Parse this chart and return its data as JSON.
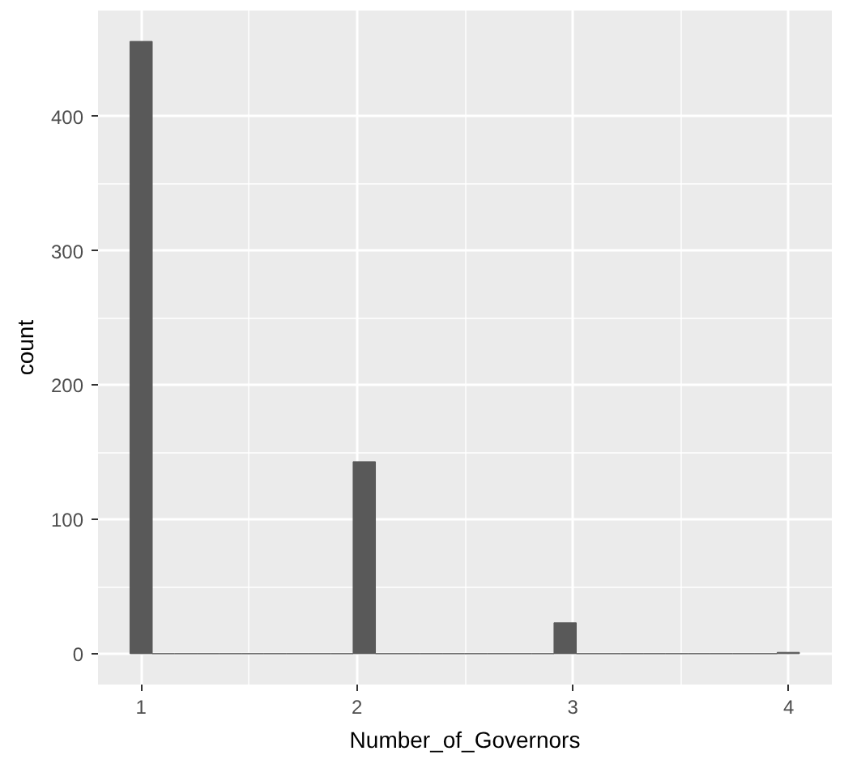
{
  "chart_data": {
    "type": "histogram",
    "xlabel": "Number_of_Governors",
    "ylabel": "count",
    "color": "#595959",
    "bins": [
      0.948,
      1.0514,
      1.1548,
      1.2582,
      1.3616,
      1.465,
      1.5684,
      1.6718,
      1.7752,
      1.8786,
      1.982,
      2.0854,
      2.1888,
      2.2922,
      2.3956,
      2.499,
      2.6024,
      2.7058,
      2.8092,
      2.9126,
      3.016,
      3.1194,
      3.2228,
      3.3262,
      3.4296,
      3.533,
      3.6364,
      3.7398,
      3.8432,
      3.9466,
      4.05
    ],
    "values": [
      456,
      0,
      0,
      0,
      0,
      0,
      0,
      0,
      0,
      0,
      143,
      0,
      0,
      0,
      0,
      0,
      0,
      0,
      0,
      23,
      0,
      0,
      0,
      0,
      0,
      0,
      0,
      0,
      0,
      1
    ],
    "xlim": [
      0.8,
      4.2
    ],
    "ylim": [
      -23,
      479
    ],
    "xticks": [
      1,
      2,
      3,
      4
    ],
    "yticks": [
      0,
      100,
      200,
      300,
      400
    ],
    "grid": true
  }
}
